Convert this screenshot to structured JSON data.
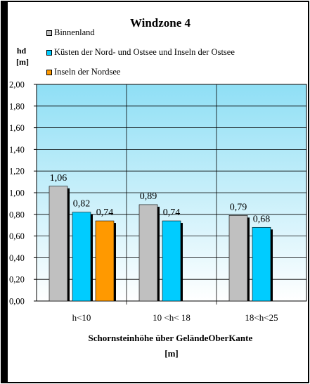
{
  "chart_data": {
    "type": "bar",
    "title": "Windzone 4",
    "ylabel": "hd\n[m]",
    "xlabel": "Schornsteinhöhe über GeländeOberKante\n[m]",
    "categories": [
      "h<10",
      "10 <h< 18",
      "18<h<25"
    ],
    "series": [
      {
        "name": "Binnenland",
        "color": "#c0c0c0",
        "values": [
          1.06,
          0.89,
          0.79
        ],
        "labels": [
          "1,06",
          "0,89",
          "0,79"
        ]
      },
      {
        "name": "Küsten der Nord- und Ostsee und Inseln der Ostsee",
        "color": "#00ccff",
        "values": [
          0.82,
          0.74,
          0.68
        ],
        "labels": [
          "0,82",
          "0,74",
          "0,68"
        ]
      },
      {
        "name": "Inseln der Nordsee",
        "color": "#ff9900",
        "values": [
          0.74,
          null,
          null
        ],
        "labels": [
          "0,74",
          "",
          ""
        ]
      }
    ],
    "yticks": [
      "0,00",
      "0,20",
      "0,40",
      "0,60",
      "0,80",
      "1,00",
      "1,20",
      "1,40",
      "1,60",
      "1,80",
      "2,00"
    ],
    "ylim": [
      0,
      2
    ],
    "grid": true,
    "legend_position": "top-left"
  }
}
